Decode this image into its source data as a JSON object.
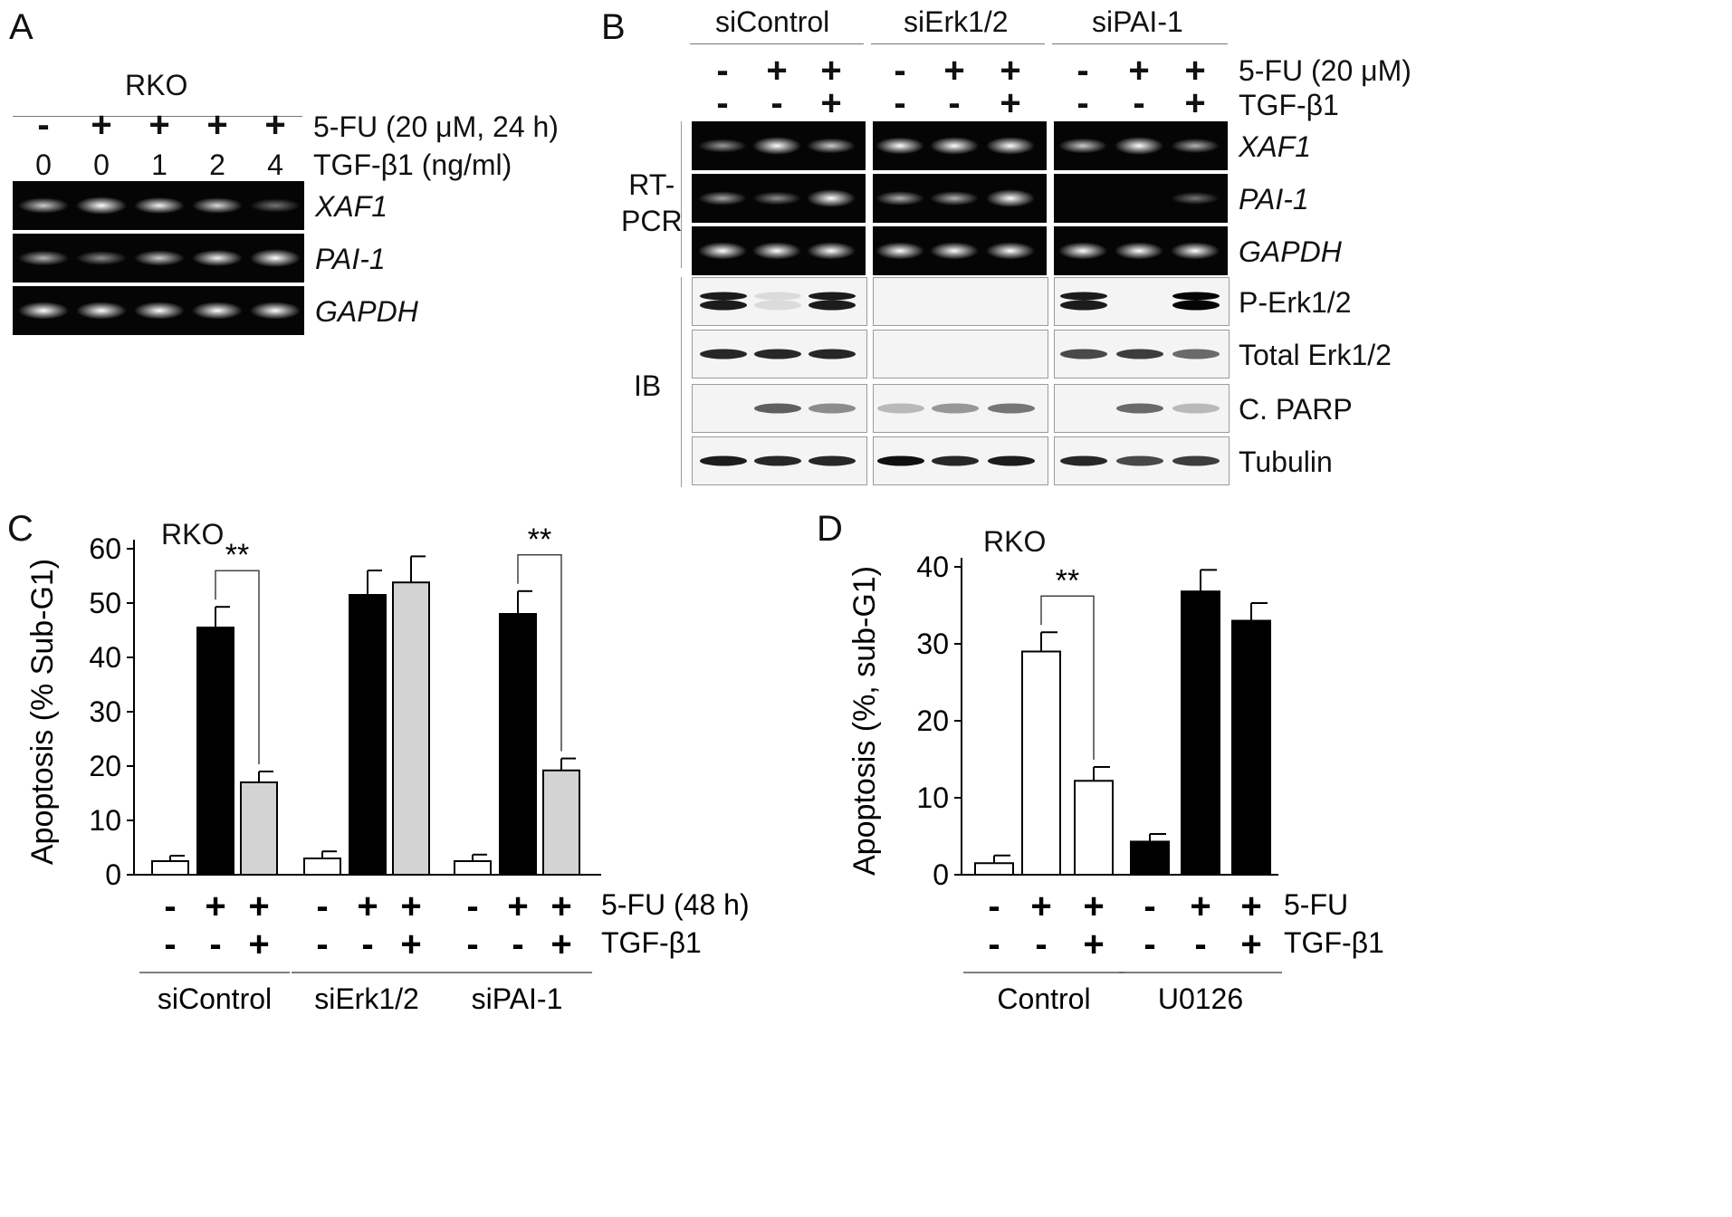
{
  "panels": {
    "a": "A",
    "b": "B",
    "c": "C",
    "d": "D"
  },
  "panel_a": {
    "cell_line": "RKO",
    "fu_signs": [
      "-",
      "+",
      "+",
      "+",
      "+"
    ],
    "tgf_doses": [
      "0",
      "0",
      "1",
      "2",
      "4"
    ],
    "fu_label": "5-FU (20 μM, 24 h)",
    "tgf_label": "TGF-β1 (ng/ml)",
    "gene_labels": [
      "XAF1",
      "PAI-1",
      "GAPDH"
    ],
    "band_intensity": {
      "XAF1": [
        0.55,
        0.95,
        0.7,
        0.6,
        0.2
      ],
      "PAI-1": [
        0.45,
        0.3,
        0.55,
        0.7,
        1.0
      ],
      "GAPDH": [
        0.9,
        0.9,
        0.9,
        0.9,
        0.9
      ]
    }
  },
  "panel_b": {
    "groups": [
      "siControl",
      "siErk1/2",
      "siPAI-1"
    ],
    "fu_signs": [
      "-",
      "+",
      "+"
    ],
    "tgf_signs": [
      "-",
      "-",
      "+"
    ],
    "fu_label": "5-FU (20 μM)",
    "tgf_label": "TGF-β1",
    "rtpcr_label": "RT-\nPCR",
    "ib_label": "IB",
    "gel_labels": [
      "XAF1",
      "PAI-1",
      "GAPDH"
    ],
    "blot_labels": [
      "P-Erk1/2",
      "Total Erk1/2",
      "C. PARP",
      "Tubulin"
    ]
  },
  "panel_c": {
    "cell_line": "RKO",
    "fu_label": "5-FU (48 h)",
    "tgf_label": "TGF-β1",
    "significance": "**"
  },
  "panel_d": {
    "cell_line": "RKO",
    "fu_label": "5-FU",
    "tgf_label": "TGF-β1",
    "significance": "**"
  },
  "chart_data": [
    {
      "type": "bar",
      "ylabel": "Apoptosis (% Sub-G1)",
      "ylim": [
        0,
        60
      ],
      "yticks": [
        0,
        10,
        20,
        30,
        40,
        50,
        60
      ],
      "groups": [
        "siControl",
        "siErk1/2",
        "siPAI-1"
      ],
      "fu_signs": [
        "-",
        "+",
        "+"
      ],
      "tgf_signs": [
        "-",
        "-",
        "+"
      ],
      "bars": [
        {
          "group": "siControl",
          "value": 2.5,
          "error": 1.0,
          "fill": "#ffffff"
        },
        {
          "group": "siControl",
          "value": 45.5,
          "error": 3.8,
          "fill": "#000000"
        },
        {
          "group": "siControl",
          "value": 17.0,
          "error": 2.0,
          "fill": "#d3d3d3"
        },
        {
          "group": "siErk1/2",
          "value": 3.0,
          "error": 1.3,
          "fill": "#ffffff"
        },
        {
          "group": "siErk1/2",
          "value": 51.5,
          "error": 4.5,
          "fill": "#000000"
        },
        {
          "group": "siErk1/2",
          "value": 53.8,
          "error": 4.8,
          "fill": "#d3d3d3"
        },
        {
          "group": "siPAI-1",
          "value": 2.5,
          "error": 1.2,
          "fill": "#ffffff"
        },
        {
          "group": "siPAI-1",
          "value": 48.0,
          "error": 4.2,
          "fill": "#000000"
        },
        {
          "group": "siPAI-1",
          "value": 19.2,
          "error": 2.2,
          "fill": "#d3d3d3"
        }
      ]
    },
    {
      "type": "bar",
      "ylabel": "Apoptosis (%, sub-G1)",
      "ylim": [
        0,
        40
      ],
      "yticks": [
        0,
        10,
        20,
        30,
        40
      ],
      "groups": [
        "Control",
        "U0126"
      ],
      "fu_signs": [
        "-",
        "+",
        "+"
      ],
      "tgf_signs": [
        "-",
        "-",
        "+"
      ],
      "bars": [
        {
          "group": "Control",
          "value": 1.5,
          "error": 1.0,
          "fill": "#ffffff"
        },
        {
          "group": "Control",
          "value": 29.0,
          "error": 2.5,
          "fill": "#ffffff"
        },
        {
          "group": "Control",
          "value": 12.2,
          "error": 1.8,
          "fill": "#ffffff"
        },
        {
          "group": "U0126",
          "value": 4.3,
          "error": 1.0,
          "fill": "#000000"
        },
        {
          "group": "U0126",
          "value": 36.8,
          "error": 2.8,
          "fill": "#000000"
        },
        {
          "group": "U0126",
          "value": 33.0,
          "error": 2.3,
          "fill": "#000000"
        }
      ]
    }
  ]
}
